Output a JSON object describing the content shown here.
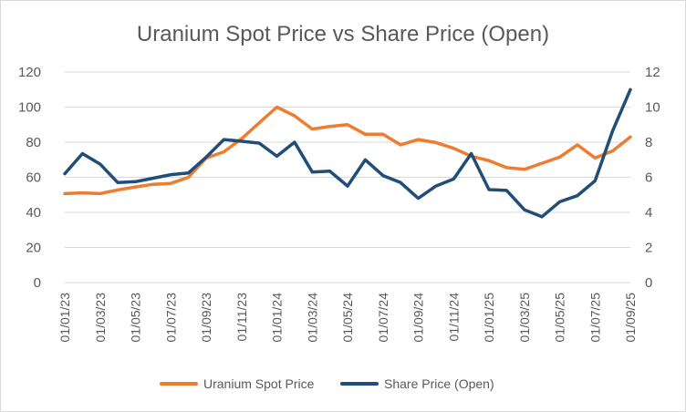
{
  "chart_data": {
    "type": "line",
    "title": "Uranium Spot Price vs Share Price (Open)",
    "x_tick_labels": [
      "01/01/23",
      "01/03/23",
      "01/05/23",
      "01/07/23",
      "01/09/23",
      "01/11/23",
      "01/01/24",
      "01/03/24",
      "01/05/24",
      "01/07/24",
      "01/09/24",
      "01/11/24",
      "01/01/25",
      "01/03/25",
      "01/05/25",
      "01/07/25",
      "01/09/25"
    ],
    "y_left": {
      "min": 0,
      "max": 120,
      "ticks": [
        "0",
        "20",
        "40",
        "60",
        "80",
        "100",
        "120"
      ]
    },
    "y_right": {
      "min": 0,
      "max": 12,
      "ticks": [
        "0",
        "2",
        "4",
        "6",
        "8",
        "10",
        "12"
      ]
    },
    "grid": true,
    "legend_position": "bottom",
    "series": [
      {
        "name": "Uranium Spot Price",
        "axis": "left",
        "color": "#ED7D31",
        "values": [
          50.7,
          51.1,
          50.7,
          52.8,
          54.5,
          56.0,
          56.5,
          60.0,
          71.0,
          74.5,
          82.0,
          91.0,
          100.0,
          95.0,
          87.5,
          89.0,
          90.0,
          84.5,
          84.5,
          78.5,
          81.5,
          79.8,
          76.5,
          72.0,
          69.5,
          65.5,
          64.5,
          68.0,
          71.5,
          78.5,
          71.0,
          75.0,
          83.0
        ]
      },
      {
        "name": "Share Price (Open)",
        "axis": "right",
        "color": "#1F4E79",
        "values": [
          6.2,
          7.35,
          6.75,
          5.7,
          5.75,
          5.95,
          6.15,
          6.25,
          7.15,
          8.15,
          8.05,
          7.95,
          7.2,
          8.0,
          6.3,
          6.35,
          5.5,
          7.0,
          6.1,
          5.7,
          4.8,
          5.5,
          5.9,
          7.35,
          5.3,
          5.25,
          4.15,
          3.75,
          4.6,
          4.95,
          5.8,
          8.65,
          11.0
        ]
      }
    ]
  }
}
